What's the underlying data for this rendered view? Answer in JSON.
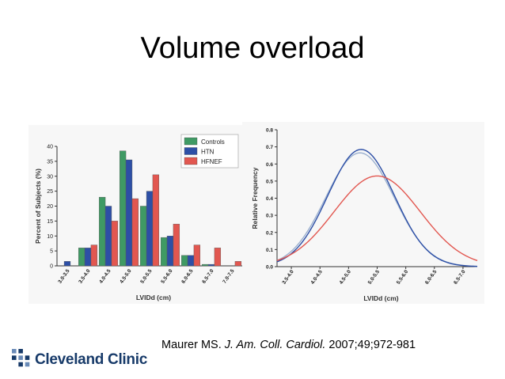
{
  "slide": {
    "title": "Volume overload"
  },
  "citation": {
    "author": "Maurer MS.",
    "journal": "J. Am. Coll. Cardiol.",
    "ref": "2007;49;972-981"
  },
  "logo": {
    "text": "Cleveland Clinic",
    "color": "#173a69"
  },
  "colors": {
    "Controls": "#3f9a64",
    "HTN": "#2d4fa6",
    "HFNEF": "#e25750"
  },
  "chart_data": [
    {
      "type": "bar",
      "ylabel": "Percent of Subjects (%)",
      "xlabel": "LVIDd (cm)",
      "ylim": [
        0,
        40
      ],
      "yticks": [
        0,
        5,
        10,
        15,
        20,
        25,
        30,
        35,
        40
      ],
      "legend_position": "top-right",
      "categories": [
        "3.0-3.5",
        "3.5-4.0",
        "4.0-4.5",
        "4.5-5.0",
        "5.0-5.5",
        "5.5-6.0",
        "6.0-6.5",
        "6.5-7.0",
        "7.0-7.5"
      ],
      "series": [
        {
          "name": "Controls",
          "values": [
            0,
            6,
            23,
            38.5,
            20,
            9.5,
            3.5,
            0.5,
            0
          ]
        },
        {
          "name": "HTN",
          "values": [
            1.5,
            6,
            20,
            35.5,
            25,
            10,
            3.5,
            0.5,
            0
          ]
        },
        {
          "name": "HFNEF",
          "values": [
            0,
            7,
            15,
            22.5,
            30.5,
            14,
            7,
            6,
            1.5
          ]
        }
      ]
    },
    {
      "type": "line",
      "ylabel": "Relative Frequency",
      "xlabel": "LVIDd (cm)",
      "ylim": [
        0,
        0.8
      ],
      "yticks": [
        0.0,
        0.1,
        0.2,
        0.3,
        0.4,
        0.5,
        0.6,
        0.7,
        0.8
      ],
      "xtick_labels": [
        "3.5-4.0",
        "4.0-4.5",
        "4.5-5.0",
        "5.0-5.5",
        "5.5-6.0",
        "6.0-6.5",
        "6.5-7.0"
      ],
      "xlim": [
        3.5,
        7.0
      ],
      "series": [
        {
          "name": "Controls",
          "mean": 4.95,
          "peak": 0.665
        },
        {
          "name": "HTN",
          "mean": 4.97,
          "peak": 0.685
        },
        {
          "name": "HFNEF",
          "mean": 5.25,
          "peak": 0.53
        }
      ]
    }
  ]
}
